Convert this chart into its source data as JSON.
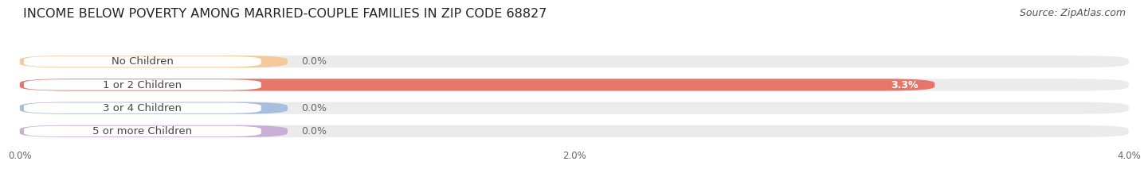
{
  "title": "INCOME BELOW POVERTY AMONG MARRIED-COUPLE FAMILIES IN ZIP CODE 68827",
  "source": "Source: ZipAtlas.com",
  "categories": [
    "No Children",
    "1 or 2 Children",
    "3 or 4 Children",
    "5 or more Children"
  ],
  "values": [
    0.0,
    3.3,
    0.0,
    0.0
  ],
  "bar_colors": [
    "#f5c99a",
    "#e8756a",
    "#a8bedd",
    "#c9aed6"
  ],
  "bar_bg_color": "#ebebeb",
  "xlim": [
    0,
    4.0
  ],
  "xticks": [
    0.0,
    2.0,
    4.0
  ],
  "xtick_labels": [
    "0.0%",
    "2.0%",
    "4.0%"
  ],
  "title_fontsize": 11.5,
  "source_fontsize": 9,
  "label_fontsize": 9.5,
  "value_fontsize": 9,
  "background_color": "#ffffff",
  "label_color": "#444444",
  "value_color_inside": "#ffffff",
  "value_color_outside": "#666666"
}
